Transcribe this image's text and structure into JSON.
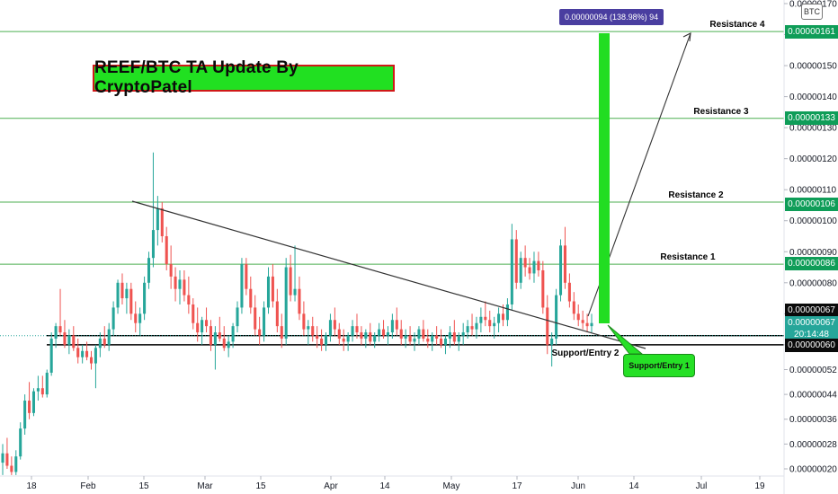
{
  "chart_data": {
    "type": "candlestick",
    "title": "REEF/BTC TA Update By CryptoPatel",
    "currency_unit": "BTC",
    "ylim": [
      2e-07,
      1.7e-06
    ],
    "y_ticks": [
      "0.00000170",
      "0.00000160",
      "0.00000150",
      "0.00000140",
      "0.00000130",
      "0.00000120",
      "0.00000110",
      "0.00000100",
      "0.00000090",
      "0.00000080",
      "0.00000070",
      "0.00000060",
      "0.00000052",
      "0.00000044",
      "0.00000036",
      "0.00000028",
      "0.00000020"
    ],
    "x_ticks": [
      "18",
      "Feb",
      "15",
      "Mar",
      "15",
      "Apr",
      "14",
      "May",
      "17",
      "Jun",
      "14",
      "Jul",
      "19"
    ],
    "levels": [
      {
        "label": "Resistance 4",
        "price": "0.00000161",
        "color": "#4caf50"
      },
      {
        "label": "Resistance 3",
        "price": "0.00000133",
        "color": "#4caf50"
      },
      {
        "label": "Resistance 2",
        "price": "0.00000106",
        "color": "#4caf50"
      },
      {
        "label": "Resistance 1",
        "price": "0.00000086",
        "color": "#4caf50"
      },
      {
        "label": "Support/Entry 2",
        "price": "0.00000060",
        "color": "#000000"
      }
    ],
    "entry_price": "0.00000067",
    "last_price": "0.00000067",
    "countdown": "20:14:48",
    "measure_label": "0.00000094 (138.98%) 94",
    "entry1_label": "Support/Entry 1",
    "candles": [
      [
        2.2e-07,
        2.8e-07,
        1.8e-07,
        2.5e-07
      ],
      [
        2.5e-07,
        3e-07,
        2e-07,
        2.1e-07
      ],
      [
        2.1e-07,
        2.4e-07,
        1.8e-07,
        1.9e-07
      ],
      [
        1.9e-07,
        2.6e-07,
        1.8e-07,
        2.4e-07
      ],
      [
        2.4e-07,
        3.5e-07,
        2.3e-07,
        3.3e-07
      ],
      [
        3.3e-07,
        4.4e-07,
        3.1e-07,
        4.2e-07
      ],
      [
        4.2e-07,
        4.8e-07,
        3.6e-07,
        3.8e-07
      ],
      [
        3.8e-07,
        4.6e-07,
        3.7e-07,
        4.5e-07
      ],
      [
        4.5e-07,
        5e-07,
        4.2e-07,
        4.6e-07
      ],
      [
        4.6e-07,
        5e-07,
        4.3e-07,
        4.4e-07
      ],
      [
        4.4e-07,
        5.2e-07,
        4.3e-07,
        5.1e-07
      ],
      [
        5.1e-07,
        6.4e-07,
        5e-07,
        6.2e-07
      ],
      [
        6.2e-07,
        6.7e-07,
        5.9e-07,
        6.6e-07
      ],
      [
        6.6e-07,
        7.8e-07,
        6.3e-07,
        6.4e-07
      ],
      [
        6.4e-07,
        6.8e-07,
        5.9e-07,
        6e-07
      ],
      [
        6e-07,
        6.5e-07,
        5.7e-07,
        6.3e-07
      ],
      [
        6.3e-07,
        6.6e-07,
        5.8e-07,
        5.9e-07
      ],
      [
        5.9e-07,
        6.2e-07,
        5.4e-07,
        5.6e-07
      ],
      [
        5.6e-07,
        6e-07,
        5.4e-07,
        5.8e-07
      ],
      [
        5.8e-07,
        6.1e-07,
        5.5e-07,
        5.6e-07
      ],
      [
        5.6e-07,
        5.8e-07,
        5.2e-07,
        5.4e-07
      ],
      [
        5.4e-07,
        6e-07,
        4.6e-07,
        5.9e-07
      ],
      [
        5.9e-07,
        6.4e-07,
        5.6e-07,
        6.2e-07
      ],
      [
        6.2e-07,
        6.6e-07,
        5.9e-07,
        6e-07
      ],
      [
        6e-07,
        6.7e-07,
        5.8e-07,
        6.5e-07
      ],
      [
        6.5e-07,
        7.4e-07,
        6.3e-07,
        7.2e-07
      ],
      [
        7.2e-07,
        8.1e-07,
        7e-07,
        8e-07
      ],
      [
        8e-07,
        8.3e-07,
        7.3e-07,
        7.5e-07
      ],
      [
        7.5e-07,
        8e-07,
        7e-07,
        7.8e-07
      ],
      [
        7.8e-07,
        8e-07,
        6.8e-07,
        7e-07
      ],
      [
        7e-07,
        7.4e-07,
        6.4e-07,
        6.7e-07
      ],
      [
        6.7e-07,
        7.2e-07,
        6.3e-07,
        7e-07
      ],
      [
        7e-07,
        8.2e-07,
        6.8e-07,
        8e-07
      ],
      [
        8e-07,
        9e-07,
        7.8e-07,
        8.8e-07
      ],
      [
        8.8e-07,
        1.22e-06,
        8.5e-07,
        9.7e-07
      ],
      [
        9.7e-07,
        1.08e-06,
        9.2e-07,
        1.04e-06
      ],
      [
        1.04e-06,
        1.06e-06,
        9.3e-07,
        9.5e-07
      ],
      [
        9.5e-07,
        9.8e-07,
        8.4e-07,
        8.6e-07
      ],
      [
        8.6e-07,
        9.2e-07,
        7.8e-07,
        8.2e-07
      ],
      [
        8.2e-07,
        8.5e-07,
        7.4e-07,
        7.8e-07
      ],
      [
        7.8e-07,
        8.4e-07,
        7.3e-07,
        8.1e-07
      ],
      [
        8.1e-07,
        8.4e-07,
        7.4e-07,
        7.6e-07
      ],
      [
        7.6e-07,
        8.2e-07,
        7e-07,
        7.3e-07
      ],
      [
        7.3e-07,
        7.5e-07,
        6.5e-07,
        6.7e-07
      ],
      [
        6.7e-07,
        7.2e-07,
        6.1e-07,
        6.4e-07
      ],
      [
        6.4e-07,
        6.9e-07,
        6e-07,
        6.8e-07
      ],
      [
        6.8e-07,
        7.2e-07,
        6.4e-07,
        6.6e-07
      ],
      [
        6.6e-07,
        6.8e-07,
        5.8e-07,
        6e-07
      ],
      [
        6e-07,
        6.6e-07,
        5.2e-07,
        6.4e-07
      ],
      [
        6.4e-07,
        6.9e-07,
        6.1e-07,
        6.2e-07
      ],
      [
        6.2e-07,
        6.6e-07,
        5.8e-07,
        5.9e-07
      ],
      [
        5.9e-07,
        6.3e-07,
        5.6e-07,
        6.1e-07
      ],
      [
        6.1e-07,
        6.7e-07,
        5.9e-07,
        6.6e-07
      ],
      [
        6.6e-07,
        7.4e-07,
        6.4e-07,
        7.2e-07
      ],
      [
        7.2e-07,
        8.8e-07,
        7e-07,
        8.6e-07
      ],
      [
        8.6e-07,
        8.8e-07,
        7.6e-07,
        7.8e-07
      ],
      [
        7.8e-07,
        8.2e-07,
        7e-07,
        7.2e-07
      ],
      [
        7.2e-07,
        7.6e-07,
        6.3e-07,
        6.5e-07
      ],
      [
        6.5e-07,
        6.9e-07,
        6e-07,
        6.3e-07
      ],
      [
        6.3e-07,
        7.4e-07,
        6.1e-07,
        7.2e-07
      ],
      [
        7.2e-07,
        8.5e-07,
        7e-07,
        8.2e-07
      ],
      [
        8.2e-07,
        8.6e-07,
        7.2e-07,
        7.4e-07
      ],
      [
        7.4e-07,
        7.8e-07,
        6.4e-07,
        6.6e-07
      ],
      [
        6.6e-07,
        7e-07,
        5.9e-07,
        6.2e-07
      ],
      [
        6.2e-07,
        8.8e-07,
        6e-07,
        8.5e-07
      ],
      [
        8.5e-07,
        8.9e-07,
        7.4e-07,
        7.6e-07
      ],
      [
        7.6e-07,
        9.2e-07,
        7.4e-07,
        7.8e-07
      ],
      [
        7.8e-07,
        8.2e-07,
        6.8e-07,
        7e-07
      ],
      [
        7e-07,
        7.4e-07,
        6.3e-07,
        6.5e-07
      ],
      [
        6.5e-07,
        6.8e-07,
        6e-07,
        6.6e-07
      ],
      [
        6.6e-07,
        6.9e-07,
        6.1e-07,
        6.3e-07
      ],
      [
        6.3e-07,
        6.6e-07,
        5.9e-07,
        6.2e-07
      ],
      [
        6.2e-07,
        6.5e-07,
        5.8e-07,
        6e-07
      ],
      [
        6e-07,
        6.4e-07,
        5.8e-07,
        6.3e-07
      ],
      [
        6.3e-07,
        7e-07,
        6.1e-07,
        6.8e-07
      ],
      [
        6.8e-07,
        7.2e-07,
        6.3e-07,
        6.5e-07
      ],
      [
        6.5e-07,
        6.7e-07,
        6e-07,
        6.2e-07
      ],
      [
        6.2e-07,
        6.5e-07,
        5.8e-07,
        6.1e-07
      ],
      [
        6.1e-07,
        6.4e-07,
        5.8e-07,
        6.3e-07
      ],
      [
        6.3e-07,
        6.8e-07,
        6.1e-07,
        6.6e-07
      ],
      [
        6.6e-07,
        7e-07,
        6.2e-07,
        6.4e-07
      ],
      [
        6.4e-07,
        6.6e-07,
        6e-07,
        6.2e-07
      ],
      [
        6.2e-07,
        6.5e-07,
        5.9e-07,
        6.4e-07
      ],
      [
        6.4e-07,
        6.7e-07,
        6e-07,
        6.1e-07
      ],
      [
        6.1e-07,
        6.4e-07,
        5.9e-07,
        6.3e-07
      ],
      [
        6.3e-07,
        6.7e-07,
        6.1e-07,
        6.5e-07
      ],
      [
        6.5e-07,
        6.8e-07,
        6.2e-07,
        6.3e-07
      ],
      [
        6.3e-07,
        6.6e-07,
        6e-07,
        6.4e-07
      ],
      [
        6.4e-07,
        7e-07,
        6.2e-07,
        6.8e-07
      ],
      [
        6.8e-07,
        7.2e-07,
        6.3e-07,
        6.5e-07
      ],
      [
        6.5e-07,
        6.8e-07,
        6e-07,
        6.2e-07
      ],
      [
        6.2e-07,
        6.5e-07,
        5.9e-07,
        6.3e-07
      ],
      [
        6.3e-07,
        6.6e-07,
        6e-07,
        6.1e-07
      ],
      [
        6.1e-07,
        6.4e-07,
        5.8e-07,
        6.2e-07
      ],
      [
        6.2e-07,
        6.6e-07,
        6e-07,
        6.5e-07
      ],
      [
        6.5e-07,
        6.8e-07,
        6.1e-07,
        6.2e-07
      ],
      [
        6.2e-07,
        6.5e-07,
        5.9e-07,
        6.1e-07
      ],
      [
        6.1e-07,
        6.4e-07,
        5.8e-07,
        6.3e-07
      ],
      [
        6.3e-07,
        6.6e-07,
        6e-07,
        6.2e-07
      ],
      [
        6.2e-07,
        6.5e-07,
        5.9e-07,
        6e-07
      ],
      [
        6e-07,
        6.3e-07,
        5.7e-07,
        6.2e-07
      ],
      [
        6.2e-07,
        6.6e-07,
        5.9e-07,
        6.4e-07
      ],
      [
        6.4e-07,
        6.8e-07,
        6e-07,
        6.1e-07
      ],
      [
        6.1e-07,
        6.4e-07,
        5.8e-07,
        6.3e-07
      ],
      [
        6.3e-07,
        6.7e-07,
        6e-07,
        6.4e-07
      ],
      [
        6.4e-07,
        6.8e-07,
        6.2e-07,
        6.6e-07
      ],
      [
        6.6e-07,
        7e-07,
        6.3e-07,
        6.5e-07
      ],
      [
        6.5e-07,
        6.9e-07,
        6.2e-07,
        6.7e-07
      ],
      [
        6.7e-07,
        7.2e-07,
        6.4e-07,
        6.9e-07
      ],
      [
        6.9e-07,
        7.4e-07,
        6.6e-07,
        6.8e-07
      ],
      [
        6.8e-07,
        7.1e-07,
        6.4e-07,
        6.6e-07
      ],
      [
        6.6e-07,
        6.9e-07,
        6.2e-07,
        6.7e-07
      ],
      [
        6.7e-07,
        7.2e-07,
        6.4e-07,
        7e-07
      ],
      [
        7e-07,
        7.3e-07,
        6.6e-07,
        6.8e-07
      ],
      [
        6.8e-07,
        7.5e-07,
        6.6e-07,
        7.3e-07
      ],
      [
        7.3e-07,
        9.9e-07,
        7.1e-07,
        9.4e-07
      ],
      [
        9.4e-07,
        9.7e-07,
        7.8e-07,
        8e-07
      ],
      [
        8e-07,
        9e-07,
        7.8e-07,
        8.8e-07
      ],
      [
        8.8e-07,
        9.2e-07,
        8.2e-07,
        8.5e-07
      ],
      [
        8.5e-07,
        8.8e-07,
        8.1e-07,
        8.3e-07
      ],
      [
        8.3e-07,
        9e-07,
        8e-07,
        8.7e-07
      ],
      [
        8.7e-07,
        9e-07,
        8.2e-07,
        8.4e-07
      ],
      [
        8.4e-07,
        8.7e-07,
        7e-07,
        7.2e-07
      ],
      [
        7.2e-07,
        7.6e-07,
        5.7e-07,
        6e-07
      ],
      [
        6e-07,
        6.4e-07,
        5.3e-07,
        6.2e-07
      ],
      [
        6.2e-07,
        7.8e-07,
        6e-07,
        7.6e-07
      ],
      [
        7.6e-07,
        9.4e-07,
        7.4e-07,
        9.2e-07
      ],
      [
        9.2e-07,
        9.8e-07,
        7.8e-07,
        8e-07
      ],
      [
        8e-07,
        8.3e-07,
        7.2e-07,
        7.4e-07
      ],
      [
        7.4e-07,
        7.7e-07,
        6.8e-07,
        7e-07
      ],
      [
        7e-07,
        7.3e-07,
        6.6e-07,
        6.8e-07
      ],
      [
        6.8e-07,
        7.1e-07,
        6.5e-07,
        6.7e-07
      ],
      [
        6.7e-07,
        7e-07,
        6.4e-07,
        6.6e-07
      ],
      [
        6.6e-07,
        7e-07,
        6.4e-07,
        6.7e-07
      ]
    ]
  }
}
